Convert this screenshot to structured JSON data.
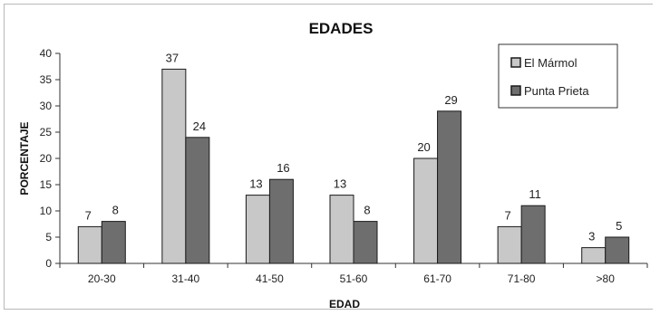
{
  "chart_data": {
    "type": "bar",
    "title": "EDADES",
    "xlabel": "EDAD",
    "ylabel": "PORCENTAJE",
    "categories": [
      "20-30",
      "31-40",
      "41-50",
      "51-60",
      "61-70",
      "71-80",
      ">80"
    ],
    "series": [
      {
        "name": "El Mármol",
        "values": [
          7,
          37,
          13,
          13,
          20,
          7,
          3
        ],
        "color": "#c8c8c8"
      },
      {
        "name": "Punta Prieta",
        "values": [
          8,
          24,
          16,
          8,
          29,
          11,
          5
        ],
        "color": "#6e6e6e"
      }
    ],
    "ylim": [
      0,
      40
    ],
    "yticks": [
      0,
      5,
      10,
      15,
      20,
      25,
      30,
      35,
      40
    ],
    "grid": false,
    "legend_position": "top-right"
  }
}
